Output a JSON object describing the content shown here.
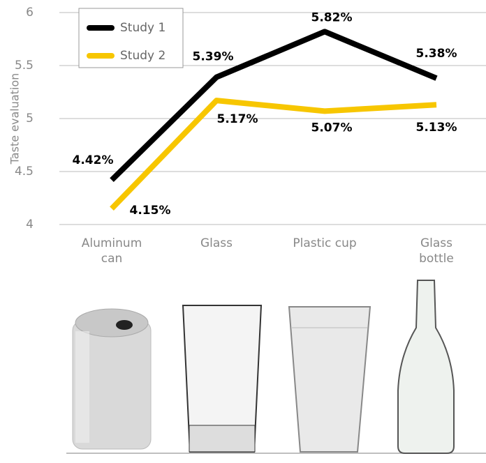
{
  "chart_data": {
    "type": "line",
    "y_label": "Taste evaluation",
    "categories": [
      "Aluminum can",
      "Glass",
      "Plastic cup",
      "Glass bottle"
    ],
    "series": [
      {
        "name": "Study 1",
        "color": "#000000",
        "values": [
          4.42,
          5.39,
          5.82,
          5.38
        ],
        "value_labels": [
          "4.42%",
          "5.39%",
          "5.82%",
          "5.38%"
        ]
      },
      {
        "name": "Study 2",
        "color": "#f7c600",
        "values": [
          4.15,
          5.17,
          5.07,
          5.13
        ],
        "value_labels": [
          "4.15%",
          "5.17%",
          "5.07%",
          "5.13%"
        ]
      }
    ],
    "ylim": [
      4,
      6
    ],
    "yticks": [
      4,
      4.5,
      5,
      5.5,
      6
    ],
    "grid": true,
    "legend": "upper left"
  }
}
